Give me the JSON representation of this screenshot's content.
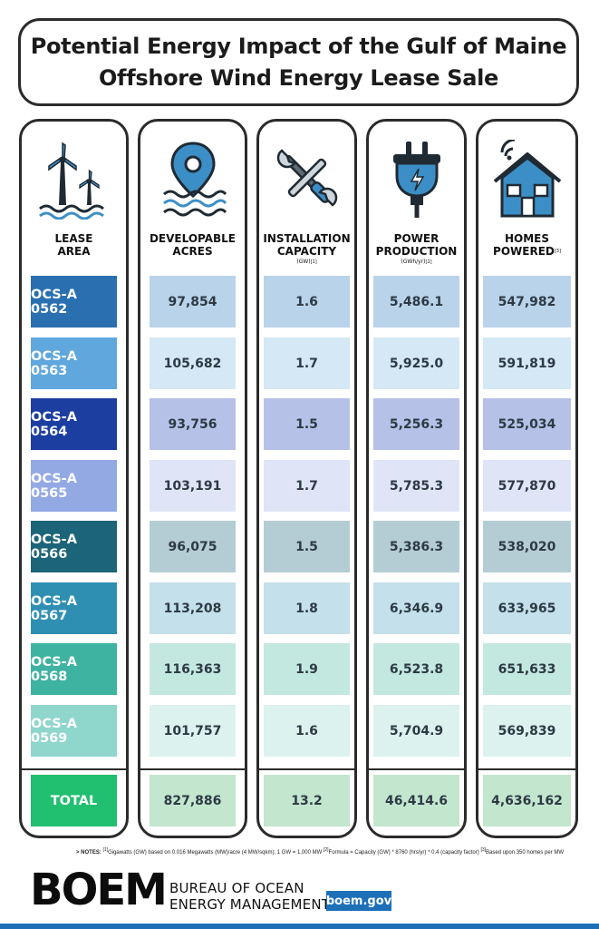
{
  "title": {
    "line1": "Potential Energy Impact of the Gulf of Maine",
    "line2": "Offshore Wind Energy Lease Sale"
  },
  "columns": {
    "lease": {
      "label1": "LEASE",
      "label2": "AREA",
      "icon": "wind-turbines-icon"
    },
    "acres": {
      "label1": "DEVELOPABLE",
      "label2": "ACRES",
      "icon": "ocean-location-pin-icon"
    },
    "capacity": {
      "label1": "INSTALLATION",
      "label2": "CAPACITY",
      "unit": "(GW)",
      "note": "[1]",
      "icon": "tools-icon"
    },
    "power": {
      "label1": "POWER",
      "label2": "PRODUCTION",
      "unit": "(GWh/yr)",
      "note": "[2]",
      "icon": "power-plug-icon"
    },
    "homes": {
      "label1": "HOMES",
      "label2": "POWERED",
      "note": "[3]",
      "icon": "smart-home-icon"
    }
  },
  "chart_data": {
    "type": "table",
    "columns": [
      "LEASE AREA",
      "DEVELOPABLE ACRES",
      "INSTALLATION CAPACITY (GW)",
      "POWER PRODUCTION (GWh/yr)",
      "HOMES POWERED"
    ],
    "rows": [
      {
        "lease": "OCS-A 0562",
        "acres": "97,854",
        "capacity": "1.6",
        "power": "5,486.1",
        "homes": "547,982",
        "lease_color": "#2a6fb0",
        "tint": "#b9d3ea"
      },
      {
        "lease": "OCS-A 0563",
        "acres": "105,682",
        "capacity": "1.7",
        "power": "5,925.0",
        "homes": "591,819",
        "lease_color": "#5fa7dd",
        "tint": "#d4e8f6"
      },
      {
        "lease": "OCS-A 0564",
        "acres": "93,756",
        "capacity": "1.5",
        "power": "5,256.3",
        "homes": "525,034",
        "lease_color": "#1c3ea0",
        "tint": "#b6c1e8"
      },
      {
        "lease": "OCS-A 0565",
        "acres": "103,191",
        "capacity": "1.7",
        "power": "5,785.3",
        "homes": "577,870",
        "lease_color": "#93a9e4",
        "tint": "#dfe5f7"
      },
      {
        "lease": "OCS-A 0566",
        "acres": "96,075",
        "capacity": "1.5",
        "power": "5,386.3",
        "homes": "538,020",
        "lease_color": "#1c6478",
        "tint": "#b4cdd4"
      },
      {
        "lease": "OCS-A 0567",
        "acres": "113,208",
        "capacity": "1.8",
        "power": "6,346.9",
        "homes": "633,965",
        "lease_color": "#2f8fb2",
        "tint": "#c4e0ea"
      },
      {
        "lease": "OCS-A 0568",
        "acres": "116,363",
        "capacity": "1.9",
        "power": "6,523.8",
        "homes": "651,633",
        "lease_color": "#3fb3a1",
        "tint": "#c3e8e0"
      },
      {
        "lease": "OCS-A 0569",
        "acres": "101,757",
        "capacity": "1.6",
        "power": "5,704.9",
        "homes": "569,839",
        "lease_color": "#8fd6cd",
        "tint": "#dcf2ef"
      }
    ],
    "total": {
      "lease": "TOTAL",
      "acres": "827,886",
      "capacity": "13.2",
      "power": "46,414.6",
      "homes": "4,636,162",
      "lease_color": "#21bf70",
      "tint": "#c3e6cf"
    }
  },
  "notes": {
    "prefix": "> NOTES:",
    "n1_mark": "[1]",
    "n1": "Gigawatts (GW) based on 0.016 Megawatts (MW)/acre (4 MW/sqkm); 1 GW = 1,000 MW",
    "n2_mark": "[2]",
    "n2": "Formula = Capacity (GW) * 8760 (hrs/yr) * 0.4 (capacity factor)",
    "n3_mark": "[3]",
    "n3": "Based upon 350 homes per MW"
  },
  "footer": {
    "logo_text": "BOEM",
    "org_line1": "BUREAU OF OCEAN",
    "org_line2": "ENERGY MANAGEMENT",
    "site": "boem.gov",
    "accent": "#1d6fb8"
  }
}
